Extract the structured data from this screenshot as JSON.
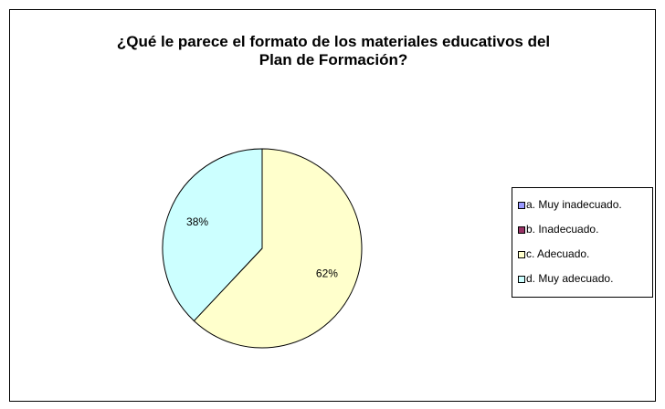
{
  "chart_data": {
    "type": "pie",
    "title": "¿Qué le parece el formato de los materiales educativos del\nPlan de Formación?",
    "categories": [
      "a. Muy inadecuado.",
      "b. Inadecuado.",
      "c. Adecuado.",
      "d. Muy adecuado."
    ],
    "values": [
      0,
      0,
      62,
      38
    ],
    "value_labels": [
      null,
      null,
      "62%",
      "38%"
    ],
    "colors": [
      "#9999ff",
      "#993366",
      "#ffffcc",
      "#ccffff"
    ],
    "legend": "right"
  }
}
